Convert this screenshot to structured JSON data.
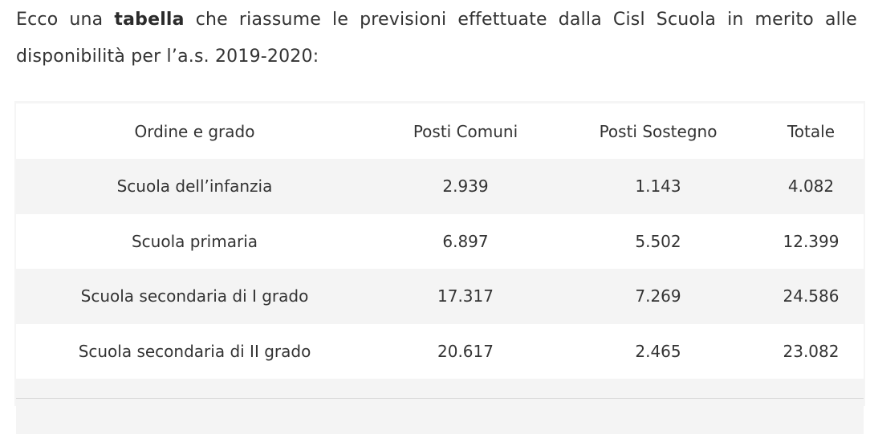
{
  "intro": {
    "before_bold": "Ecco una ",
    "bold": "tabella",
    "after_bold": " che riassume le previsioni effettuate dalla Cisl Scuola in merito alle disponibilità per l’a.s. 2019-2020:"
  },
  "table": {
    "headers": [
      "Ordine e grado",
      "Posti Comuni",
      "Posti Sostegno",
      "Totale"
    ],
    "rows": [
      [
        "Scuola dell’infanzia",
        "2.939",
        "1.143",
        "4.082"
      ],
      [
        "Scuola primaria",
        "6.897",
        "5.502",
        "12.399"
      ],
      [
        "Scuola secondaria di I grado",
        "17.317",
        "7.269",
        "24.586"
      ],
      [
        "Scuola secondaria di II grado",
        "20.617",
        "2.465",
        "23.082"
      ],
      [
        "",
        "",
        "",
        ""
      ]
    ]
  },
  "colors": {
    "text": "#333333",
    "row_alt": "#f4f4f4",
    "frame": "#f5f5f5"
  }
}
